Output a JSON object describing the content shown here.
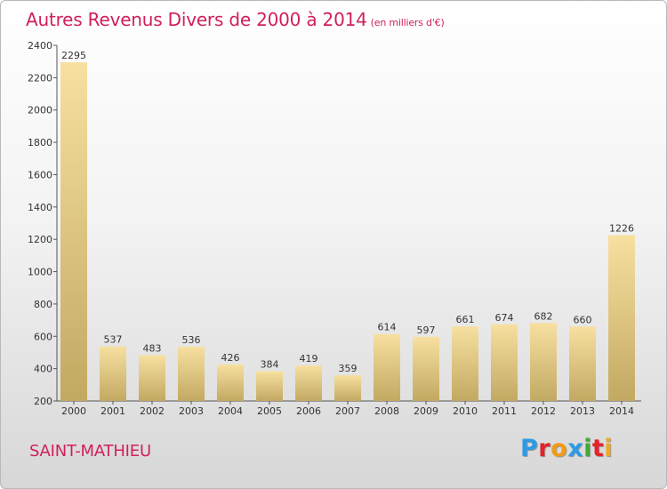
{
  "title": "Autres Revenus Divers de 2000 à 2014",
  "subtitle": "(en milliers d'€)",
  "location": "SAINT-MATHIEU",
  "logo": {
    "letters": [
      "P",
      "r",
      "o",
      "x",
      "i",
      "t",
      "i"
    ],
    "colors": [
      "#2c9be3",
      "#e3222a",
      "#f39a16",
      "#2c9be3",
      "#44aa33",
      "#e3222a",
      "#f2a81f"
    ]
  },
  "chart_data": {
    "type": "bar",
    "title": "Autres Revenus Divers de 2000 à 2014",
    "subtitle": "(en milliers d'€)",
    "xlabel": "",
    "ylabel": "",
    "categories": [
      "2000",
      "2001",
      "2002",
      "2003",
      "2004",
      "2005",
      "2006",
      "2007",
      "2008",
      "2009",
      "2010",
      "2011",
      "2012",
      "2013",
      "2014"
    ],
    "values": [
      2295,
      537,
      483,
      536,
      426,
      384,
      419,
      359,
      614,
      597,
      661,
      674,
      682,
      660,
      1226
    ],
    "ylim": [
      200,
      2400
    ],
    "yticks": [
      200,
      400,
      600,
      800,
      1000,
      1200,
      1400,
      1600,
      1800,
      2000,
      2200,
      2400
    ],
    "grid": false,
    "bar_color": "#e8cf8c"
  }
}
